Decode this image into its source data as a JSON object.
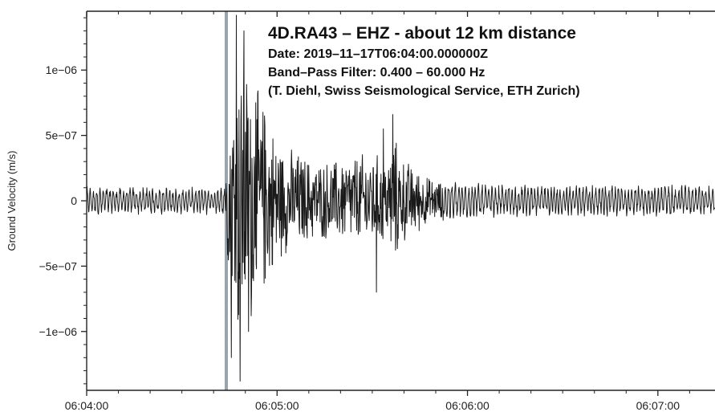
{
  "chart_data": {
    "type": "line",
    "title": "",
    "annotation": {
      "title": "4D.RA43 – EHZ - about 12 km distance",
      "lines": [
        "Date: 2019–11–17T06:04:00.000000Z",
        "Band–Pass Filter: 0.400 – 60.000 Hz",
        "(T. Diehl, Swiss Seismological Service, ETH Zurich)"
      ]
    },
    "ylabel": "Ground Velocity (m/s)",
    "xlabel": "",
    "x_tick_labels": [
      "06:04:00",
      "06:05:00",
      "06:06:00",
      "06:07:00"
    ],
    "x_ticks_seconds": [
      0,
      60,
      120,
      180
    ],
    "xlim_seconds": [
      0,
      198
    ],
    "y_ticks": [
      -1e-06,
      -5e-07,
      0,
      5e-07,
      1e-06
    ],
    "y_tick_labels": [
      "−1e−06",
      "−5e−07",
      "0",
      "5e−07",
      "1e−06"
    ],
    "ylim": [
      -1.45e-06,
      1.45e-06
    ],
    "grid": false,
    "legend": "none",
    "marker_line_seconds": 44,
    "marker_color": "#9aa4ad",
    "series": [
      {
        "color": "#1a1a1a",
        "envelope": {
          "t_seconds": [
            0,
            40,
            43.5,
            44.5,
            46,
            48,
            52,
            57,
            62,
            67,
            72,
            78,
            84,
            90,
            95,
            96.5,
            100,
            108,
            115,
            125,
            140,
            160,
            198
          ],
          "amplitude": [
            1e-07,
            1e-07,
            1.1e-07,
            5e-07,
            9.5e-07,
            1.25e-06,
            1.05e-06,
            7e-07,
            4.5e-07,
            4e-07,
            3.2e-07,
            3.4e-07,
            3.8e-07,
            4e-07,
            3.4e-07,
            5.5e-07,
            3.5e-07,
            1.9e-07,
            1.4e-07,
            1.2e-07,
            1.1e-07,
            1.1e-07,
            1.1e-07
          ]
        },
        "peaks": [
          {
            "t": 47.2,
            "v": 1.42e-06
          },
          {
            "t": 48.4,
            "v": -1.38e-06
          },
          {
            "t": 45.6,
            "v": -1.2e-06
          },
          {
            "t": 49.6,
            "v": 1.3e-06
          },
          {
            "t": 51.0,
            "v": -1e-06
          },
          {
            "t": 53.3,
            "v": 7.5e-07
          },
          {
            "t": 56.0,
            "v": 6.5e-07
          },
          {
            "t": 91.3,
            "v": -7e-07
          },
          {
            "t": 96.5,
            "v": 6.6e-07
          },
          {
            "t": 93.5,
            "v": 5.5e-07
          }
        ]
      }
    ]
  }
}
